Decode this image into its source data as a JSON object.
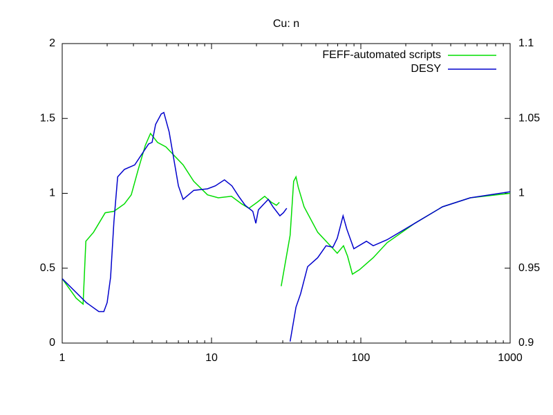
{
  "chart_data": {
    "type": "line",
    "title": "Cu: n",
    "xscale": "log",
    "xlim": [
      1,
      1000
    ],
    "xticks": [
      1,
      10,
      100,
      1000
    ],
    "ylim": [
      0,
      2
    ],
    "yticks": [
      0,
      0.5,
      1,
      1.5,
      2
    ],
    "y2lim": [
      0.9,
      1.1
    ],
    "y2ticks": [
      0.9,
      0.95,
      1,
      1.05,
      1.1
    ],
    "legend": "top-right",
    "series": [
      {
        "name": "FEFF-automated scripts",
        "color": "#00dd00",
        "x": [
          1,
          1.24,
          1.38,
          1.44,
          1.62,
          1.94,
          2.22,
          2.61,
          2.9,
          3.23,
          3.6,
          3.9,
          4.35,
          4.95,
          6.45,
          7.6,
          9.4,
          11.1,
          13.6,
          15.9,
          17.8,
          20.2,
          22.7,
          25.2,
          27.2,
          28.5,
          29,
          29.3,
          33.6,
          35.5,
          36.8,
          38.1,
          41.7,
          51.4,
          63.8,
          69.5,
          76.5,
          81.5,
          87.8,
          98,
          121,
          150,
          230,
          352,
          540,
          1000
        ],
        "values": [
          0.43,
          0.3,
          0.26,
          0.68,
          0.74,
          0.87,
          0.88,
          0.93,
          0.99,
          1.16,
          1.32,
          1.4,
          1.34,
          1.31,
          1.19,
          1.08,
          0.99,
          0.97,
          0.98,
          0.93,
          0.9,
          0.94,
          0.98,
          0.94,
          0.92,
          0.94,
          null,
          0.38,
          0.72,
          1.08,
          1.11,
          1.04,
          0.91,
          0.74,
          0.64,
          0.6,
          0.65,
          0.58,
          0.46,
          0.49,
          0.57,
          0.67,
          0.8,
          0.91,
          0.97,
          1.0
        ]
      },
      {
        "name": "DESY",
        "color": "#0000cc",
        "x": [
          1,
          1.45,
          1.76,
          1.9,
          2.0,
          2.11,
          2.22,
          2.35,
          2.61,
          3.06,
          3.79,
          4.0,
          4.22,
          4.6,
          4.79,
          5.2,
          6.0,
          6.45,
          7.6,
          9.4,
          10.6,
          12.2,
          13.7,
          15.2,
          16.8,
          18.9,
          19.8,
          20.6,
          24,
          25.8,
          28.7,
          30.3,
          31.9,
          32.5,
          33.6,
          36.8,
          39.5,
          44,
          51.4,
          58.5,
          65,
          69.5,
          76,
          80.6,
          89.8,
          109,
          121,
          150,
          230,
          352,
          540,
          1000
        ],
        "values": [
          0.43,
          0.27,
          0.21,
          0.21,
          0.27,
          0.44,
          0.81,
          1.11,
          1.16,
          1.19,
          1.33,
          1.34,
          1.46,
          1.53,
          1.54,
          1.41,
          1.05,
          0.96,
          1.02,
          1.03,
          1.05,
          1.09,
          1.05,
          0.98,
          0.92,
          0.88,
          0.8,
          0.89,
          0.96,
          0.91,
          0.85,
          0.87,
          0.9,
          null,
          0.01,
          0.24,
          0.33,
          0.51,
          0.57,
          0.65,
          0.64,
          0.7,
          0.85,
          0.76,
          0.63,
          0.68,
          0.65,
          0.69,
          0.8,
          0.91,
          0.97,
          1.01
        ]
      }
    ]
  }
}
